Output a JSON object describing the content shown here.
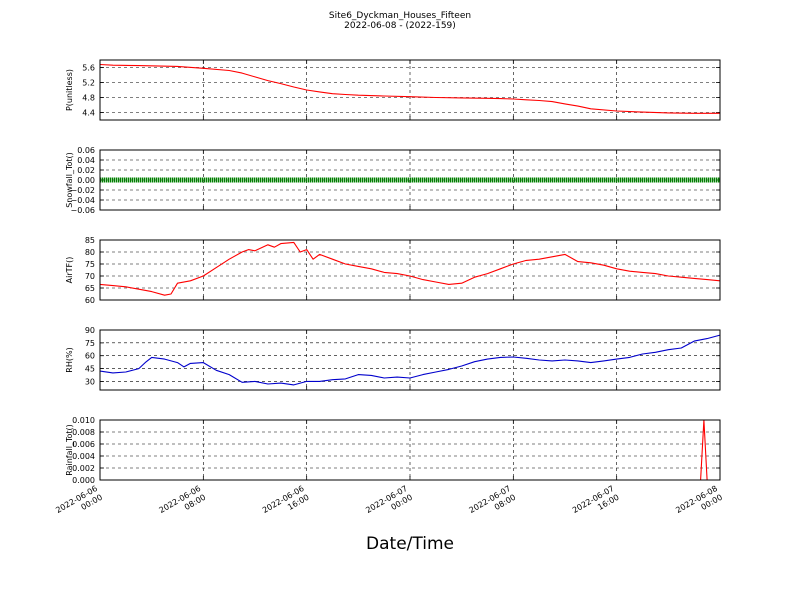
{
  "figure": {
    "title": "Site6_Dyckman_Houses_Fifteen",
    "subtitle": "2022-06-08 - (2022-159)",
    "xlabel": "Date/Time"
  },
  "colors": {
    "pressure": "#ff0000",
    "snowfall": "#008000",
    "air_temp": "#ff0000",
    "rh": "#0000cc",
    "rainfall": "#ff0000"
  },
  "chart_data": [
    {
      "type": "line",
      "title": "",
      "xlabel": "Date/Time",
      "ylabel": "P(unitless)",
      "xlim": [
        0,
        48
      ],
      "ylim": [
        4.2,
        5.8
      ],
      "yticks": [
        4.4,
        4.8,
        5.2,
        5.6
      ],
      "ytick_labels": [
        "4.4",
        "4.8",
        "5.2",
        "5.6"
      ],
      "grid": true,
      "series": [
        {
          "color": "#ff0000",
          "x": [
            0,
            1,
            3,
            6,
            8,
            10,
            11,
            12,
            13,
            14,
            15,
            16,
            17,
            18,
            19,
            20,
            22,
            24,
            26,
            28,
            30,
            31,
            32,
            33,
            34,
            35,
            36,
            37,
            38,
            40,
            42,
            44,
            46,
            48
          ],
          "y": [
            5.68,
            5.66,
            5.65,
            5.63,
            5.58,
            5.52,
            5.45,
            5.35,
            5.25,
            5.17,
            5.08,
            5.0,
            4.95,
            4.9,
            4.88,
            4.86,
            4.84,
            4.82,
            4.8,
            4.79,
            4.78,
            4.77,
            4.76,
            4.74,
            4.72,
            4.69,
            4.63,
            4.57,
            4.5,
            4.44,
            4.41,
            4.39,
            4.38,
            4.38
          ]
        }
      ]
    },
    {
      "type": "scatter",
      "title": "",
      "ylabel": "Snowfall_Tot()",
      "xlim": [
        0,
        48
      ],
      "ylim": [
        -0.06,
        0.06
      ],
      "yticks": [
        -0.06,
        -0.04,
        -0.02,
        0.0,
        0.02,
        0.04,
        0.06
      ],
      "ytick_labels": [
        "−0.06",
        "−0.04",
        "−0.02",
        "0.00",
        "0.02",
        "0.04",
        "0.06"
      ],
      "grid": true,
      "series": [
        {
          "color": "#008000",
          "x": [
            0,
            48
          ],
          "y": [
            0.0,
            0.0
          ]
        }
      ]
    },
    {
      "type": "line",
      "title": "",
      "ylabel": "AirTF()",
      "xlim": [
        0,
        48
      ],
      "ylim": [
        60,
        85
      ],
      "yticks": [
        60,
        65,
        70,
        75,
        80,
        85
      ],
      "ytick_labels": [
        "60",
        "65",
        "70",
        "75",
        "80",
        "85"
      ],
      "grid": true,
      "series": [
        {
          "color": "#ff0000",
          "x": [
            0,
            1,
            2,
            3,
            4,
            5,
            5.5,
            6,
            7,
            8,
            9,
            10,
            11,
            11.5,
            12,
            13,
            13.5,
            14,
            15,
            15.5,
            16,
            16.5,
            17,
            18,
            19,
            20,
            21,
            22,
            23,
            24,
            25,
            26,
            27,
            28,
            29,
            30,
            31,
            32,
            33,
            34,
            35,
            36,
            37,
            38,
            39,
            40,
            41,
            42,
            43,
            44,
            45,
            46,
            47,
            48
          ],
          "y": [
            66.5,
            66.0,
            65.5,
            64.5,
            63.5,
            62.0,
            62.5,
            67.0,
            68.0,
            70.0,
            73.5,
            77.0,
            80.0,
            81.0,
            80.5,
            83.0,
            82.0,
            83.5,
            84.0,
            80.0,
            81.0,
            77.0,
            79.0,
            77.0,
            75.0,
            74.0,
            73.0,
            71.5,
            71.0,
            70.0,
            68.5,
            67.5,
            66.5,
            67.0,
            69.5,
            71.0,
            73.0,
            75.0,
            76.5,
            77.0,
            78.0,
            79.0,
            76.0,
            75.5,
            74.5,
            73.0,
            72.0,
            71.5,
            71.0,
            70.0,
            69.5,
            69.0,
            68.5,
            68.0
          ]
        }
      ]
    },
    {
      "type": "line",
      "title": "",
      "ylabel": "RH(%)",
      "xlim": [
        0,
        48
      ],
      "ylim": [
        20,
        90
      ],
      "yticks": [
        30,
        45,
        60,
        75,
        90
      ],
      "ytick_labels": [
        "30",
        "45",
        "60",
        "75",
        "90"
      ],
      "grid": true,
      "series": [
        {
          "color": "#0000cc",
          "x": [
            0,
            1,
            2,
            3,
            3.5,
            4,
            5,
            6,
            6.5,
            7,
            8,
            9,
            10,
            11,
            12,
            13,
            14,
            15,
            16,
            17,
            18,
            19,
            20,
            21,
            22,
            23,
            24,
            25,
            26,
            27,
            28,
            29,
            30,
            31,
            32,
            33,
            34,
            35,
            36,
            37,
            38,
            39,
            40,
            41,
            42,
            43,
            44,
            45,
            46,
            47,
            48
          ],
          "y": [
            42.0,
            40.0,
            41.0,
            45.0,
            52.0,
            58.0,
            56.0,
            52.0,
            47.0,
            51.0,
            52.0,
            43.0,
            38.0,
            29.0,
            30.0,
            27.0,
            28.0,
            26.0,
            30.0,
            30.0,
            32.0,
            33.0,
            38.0,
            37.0,
            34.0,
            35.0,
            34.0,
            38.0,
            41.0,
            44.0,
            48.0,
            53.0,
            56.0,
            58.0,
            58.5,
            57.0,
            55.0,
            54.0,
            55.0,
            54.0,
            52.0,
            54.0,
            56.0,
            58.0,
            62.0,
            64.0,
            67.0,
            69.0,
            77.0,
            80.0,
            84.0
          ]
        }
      ]
    },
    {
      "type": "line",
      "title": "",
      "ylabel": "Rainfall_Tot()",
      "xlim": [
        0,
        48
      ],
      "ylim": [
        0,
        0.01
      ],
      "yticks": [
        0,
        0.002,
        0.004,
        0.006,
        0.008,
        0.01
      ],
      "ytick_labels": [
        "0.000",
        "0.002",
        "0.004",
        "0.006",
        "0.008",
        "0.010"
      ],
      "grid": true,
      "series": [
        {
          "color": "#ff0000",
          "x": [
            0,
            46.5,
            46.75,
            47.0,
            48
          ],
          "y": [
            0,
            0,
            0.01,
            0,
            0
          ]
        }
      ]
    }
  ],
  "xticks": {
    "values": [
      0,
      8,
      16,
      24,
      32,
      40,
      48
    ],
    "labels": [
      [
        "2022-06-06",
        "00:00"
      ],
      [
        "2022-06-06",
        "08:00"
      ],
      [
        "2022-06-06",
        "16:00"
      ],
      [
        "2022-06-07",
        "00:00"
      ],
      [
        "2022-06-07",
        "08:00"
      ],
      [
        "2022-06-07",
        "16:00"
      ],
      [
        "2022-06-08",
        "00:00"
      ]
    ]
  }
}
